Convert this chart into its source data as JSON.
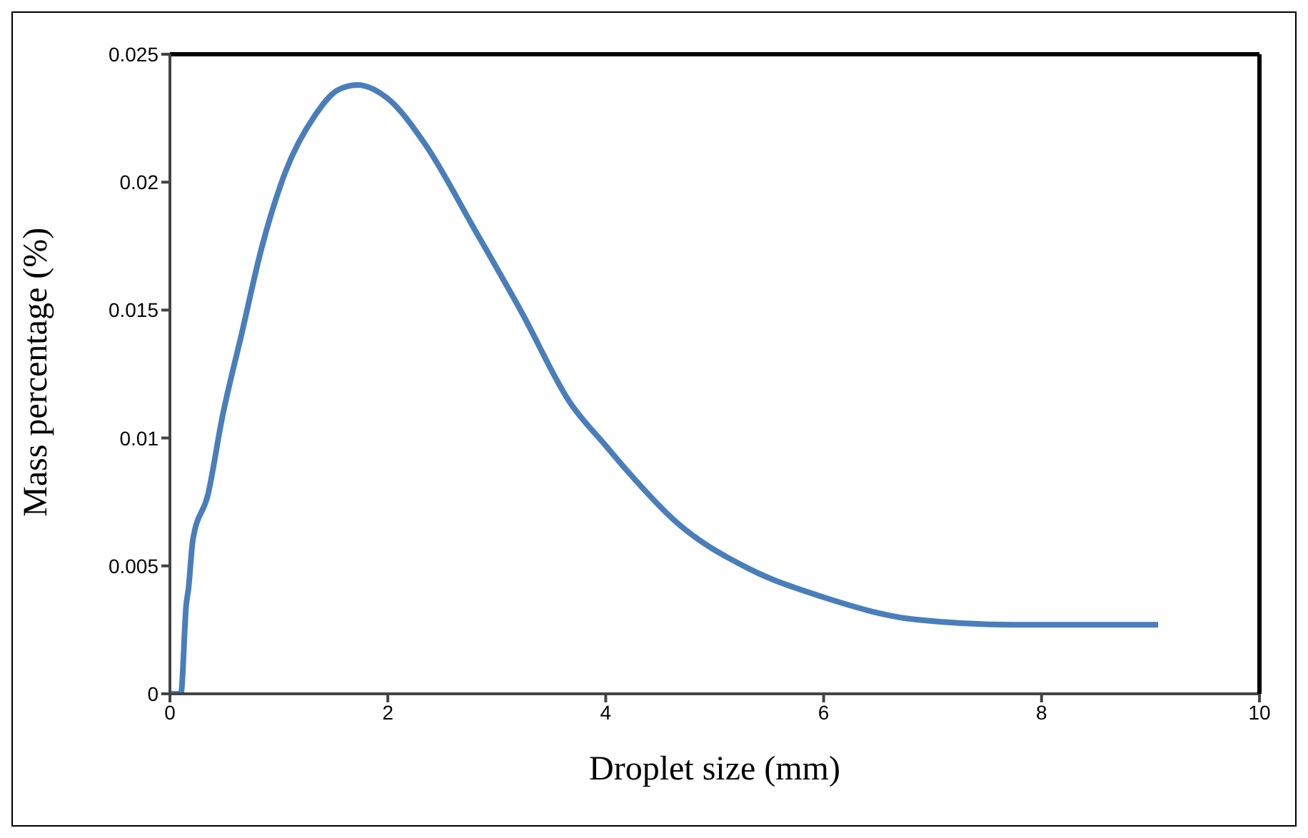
{
  "chart_data": {
    "type": "line",
    "xlabel": "Droplet size (mm)",
    "ylabel": "Mass percentage (%)",
    "xlim": [
      0,
      10
    ],
    "xticks": [
      0,
      2,
      4,
      6,
      8,
      10
    ],
    "ylim": [
      0,
      0.025
    ],
    "yticks": [
      0,
      0.005,
      0.01,
      0.015,
      0.02,
      0.025
    ],
    "grid": false,
    "legend": false,
    "marker": "none",
    "line_style": "solid",
    "series": [
      {
        "color": "#4a7ebb",
        "x": [
          0,
          0.1,
          0.15,
          0.17,
          0.21,
          0.35,
          0.48,
          0.66,
          0.84,
          1.06,
          1.33,
          1.54,
          1.72,
          1.99,
          2.34,
          2.79,
          3.23,
          3.67,
          4.0,
          4.2,
          4.65,
          5.31,
          5.98,
          6.85,
          7.74,
          8.5,
          9.07
        ],
        "values": [
          0,
          0,
          0.0035,
          0.0041,
          0.006,
          0.0078,
          0.0108,
          0.0141,
          0.0174,
          0.0204,
          0.0226,
          0.0236,
          0.0238,
          0.0233,
          0.0215,
          0.0182,
          0.0149,
          0.0114,
          0.0097,
          0.0087,
          0.0067,
          0.0049,
          0.0038,
          0.0029,
          0.0027,
          0.0027,
          0.0027
        ]
      }
    ]
  }
}
